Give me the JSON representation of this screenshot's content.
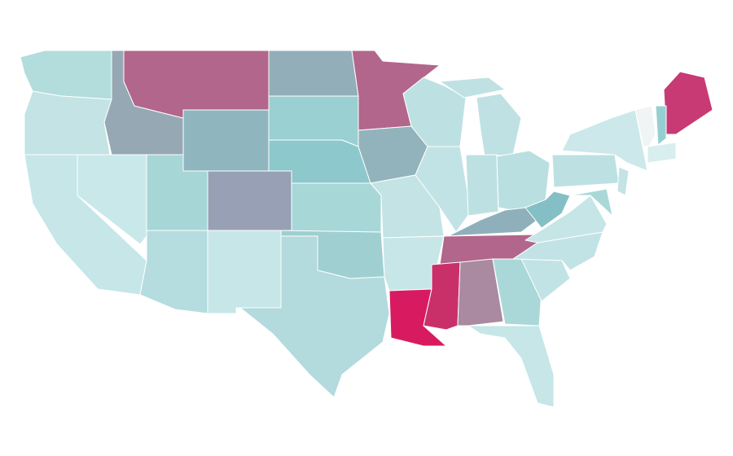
{
  "map": {
    "regions": [
      {
        "color": "#b3dcdc"
      },
      {
        "color": "#c3e3e4"
      },
      {
        "color": "#c6e6e8"
      },
      {
        "color": "#c9e8ea"
      },
      {
        "color": "#96a8b4"
      },
      {
        "color": "#b2668b"
      },
      {
        "color": "#8fb6bf"
      },
      {
        "color": "#a6d6d6"
      },
      {
        "color": "#97a0b4"
      },
      {
        "color": "#b5dcdf"
      },
      {
        "color": "#c7e6e8"
      },
      {
        "color": "#92aeb9"
      },
      {
        "color": "#9ad0d2"
      },
      {
        "color": "#8dc8cc"
      },
      {
        "color": "#a8d7d8"
      },
      {
        "color": "#9fcfd1"
      },
      {
        "color": "#b3dadd"
      },
      {
        "color": "#b2668b"
      },
      {
        "color": "#93b3bc"
      },
      {
        "color": "#c3e3e4"
      },
      {
        "color": "#c7e6e8"
      },
      {
        "color": "#d81b60"
      },
      {
        "color": "#bde1e3"
      },
      {
        "color": "#c2e3e5"
      },
      {
        "color": "#bfe1e3"
      },
      {
        "color": "#bde1e3"
      },
      {
        "color": "#b9dfe1"
      },
      {
        "color": "#8fb0bb"
      },
      {
        "color": "#b2668b"
      },
      {
        "color": "#c9306a"
      },
      {
        "color": "#a98aa0"
      },
      {
        "color": "#aad8d8"
      },
      {
        "color": "#c6e6e8"
      },
      {
        "color": "#c2e3e5"
      },
      {
        "color": "#c2e3e5"
      },
      {
        "color": "#c6e5e7"
      },
      {
        "color": "#85bfc6"
      },
      {
        "color": "#bde1e3"
      },
      {
        "color": "#cce8ea"
      },
      {
        "color": "#c73a74"
      },
      {
        "color": "#f0f4f5"
      },
      {
        "color": "#96cfd2"
      },
      {
        "color": "#d8eeef"
      },
      {
        "color": "#c3e3e4"
      },
      {
        "color": "#aad8d8"
      }
    ]
  }
}
